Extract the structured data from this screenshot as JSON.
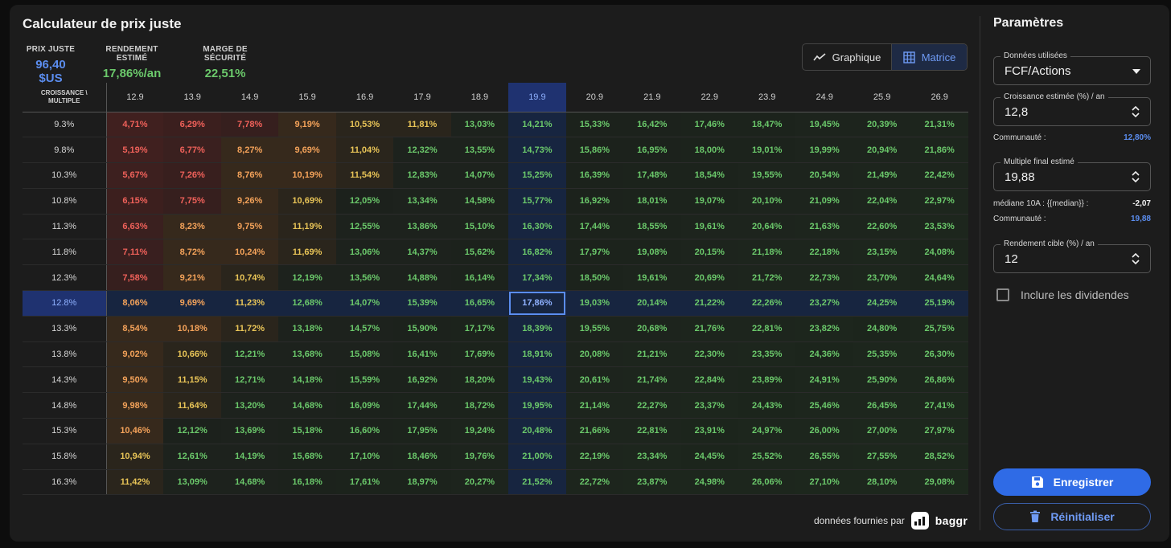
{
  "title": "Calculateur de prix juste",
  "kpis": [
    {
      "label": "PRIX JUSTE",
      "value": "96,40 $US"
    },
    {
      "label": "RENDEMENT ESTIMÉ",
      "value": "17,86%/an"
    },
    {
      "label": "MARGE DE SÉCURITÉ",
      "value": "22,51%"
    }
  ],
  "view_toggle": {
    "graph_label": "Graphique",
    "matrix_label": "Matrice",
    "active": "Matrice"
  },
  "matrix": {
    "corner_label_1": "CROISSANCE \\",
    "corner_label_2": "MULTIPLE",
    "columns": [
      "12.9",
      "13.9",
      "14.9",
      "15.9",
      "16.9",
      "17.9",
      "18.9",
      "19.9",
      "20.9",
      "21.9",
      "22.9",
      "23.9",
      "24.9",
      "25.9",
      "26.9"
    ],
    "selected_column": 7,
    "selected_row": 7,
    "colors": {
      "red": "#f0615a",
      "orange": "#f5a35a",
      "yellow": "#e8c457",
      "green": "#6bc96b",
      "selected": "#8fb1ff"
    },
    "rows": [
      {
        "label": "9.3%",
        "values": [
          "4,71%",
          "6,29%",
          "7,78%",
          "9,19%",
          "10,53%",
          "11,81%",
          "13,03%",
          "14,21%",
          "15,33%",
          "16,42%",
          "17,46%",
          "18,47%",
          "19,45%",
          "20,39%",
          "21,31%"
        ]
      },
      {
        "label": "9.8%",
        "values": [
          "5,19%",
          "6,77%",
          "8,27%",
          "9,69%",
          "11,04%",
          "12,32%",
          "13,55%",
          "14,73%",
          "15,86%",
          "16,95%",
          "18,00%",
          "19,01%",
          "19,99%",
          "20,94%",
          "21,86%"
        ]
      },
      {
        "label": "10.3%",
        "values": [
          "5,67%",
          "7,26%",
          "8,76%",
          "10,19%",
          "11,54%",
          "12,83%",
          "14,07%",
          "15,25%",
          "16,39%",
          "17,48%",
          "18,54%",
          "19,55%",
          "20,54%",
          "21,49%",
          "22,42%"
        ]
      },
      {
        "label": "10.8%",
        "values": [
          "6,15%",
          "7,75%",
          "9,26%",
          "10,69%",
          "12,05%",
          "13,34%",
          "14,58%",
          "15,77%",
          "16,92%",
          "18,01%",
          "19,07%",
          "20,10%",
          "21,09%",
          "22,04%",
          "22,97%"
        ]
      },
      {
        "label": "11.3%",
        "values": [
          "6,63%",
          "8,23%",
          "9,75%",
          "11,19%",
          "12,55%",
          "13,86%",
          "15,10%",
          "16,30%",
          "17,44%",
          "18,55%",
          "19,61%",
          "20,64%",
          "21,63%",
          "22,60%",
          "23,53%"
        ]
      },
      {
        "label": "11.8%",
        "values": [
          "7,11%",
          "8,72%",
          "10,24%",
          "11,69%",
          "13,06%",
          "14,37%",
          "15,62%",
          "16,82%",
          "17,97%",
          "19,08%",
          "20,15%",
          "21,18%",
          "22,18%",
          "23,15%",
          "24,08%"
        ]
      },
      {
        "label": "12.3%",
        "values": [
          "7,58%",
          "9,21%",
          "10,74%",
          "12,19%",
          "13,56%",
          "14,88%",
          "16,14%",
          "17,34%",
          "18,50%",
          "19,61%",
          "20,69%",
          "21,72%",
          "22,73%",
          "23,70%",
          "24,64%"
        ]
      },
      {
        "label": "12.8%",
        "values": [
          "8,06%",
          "9,69%",
          "11,23%",
          "12,68%",
          "14,07%",
          "15,39%",
          "16,65%",
          "17,86%",
          "19,03%",
          "20,14%",
          "21,22%",
          "22,26%",
          "23,27%",
          "24,25%",
          "25,19%"
        ]
      },
      {
        "label": "13.3%",
        "values": [
          "8,54%",
          "10,18%",
          "11,72%",
          "13,18%",
          "14,57%",
          "15,90%",
          "17,17%",
          "18,39%",
          "19,55%",
          "20,68%",
          "21,76%",
          "22,81%",
          "23,82%",
          "24,80%",
          "25,75%"
        ]
      },
      {
        "label": "13.8%",
        "values": [
          "9,02%",
          "10,66%",
          "12,21%",
          "13,68%",
          "15,08%",
          "16,41%",
          "17,69%",
          "18,91%",
          "20,08%",
          "21,21%",
          "22,30%",
          "23,35%",
          "24,36%",
          "25,35%",
          "26,30%"
        ]
      },
      {
        "label": "14.3%",
        "values": [
          "9,50%",
          "11,15%",
          "12,71%",
          "14,18%",
          "15,59%",
          "16,92%",
          "18,20%",
          "19,43%",
          "20,61%",
          "21,74%",
          "22,84%",
          "23,89%",
          "24,91%",
          "25,90%",
          "26,86%"
        ]
      },
      {
        "label": "14.8%",
        "values": [
          "9,98%",
          "11,64%",
          "13,20%",
          "14,68%",
          "16,09%",
          "17,44%",
          "18,72%",
          "19,95%",
          "21,14%",
          "22,27%",
          "23,37%",
          "24,43%",
          "25,46%",
          "26,45%",
          "27,41%"
        ]
      },
      {
        "label": "15.3%",
        "values": [
          "10,46%",
          "12,12%",
          "13,69%",
          "15,18%",
          "16,60%",
          "17,95%",
          "19,24%",
          "20,48%",
          "21,66%",
          "22,81%",
          "23,91%",
          "24,97%",
          "26,00%",
          "27,00%",
          "27,97%"
        ]
      },
      {
        "label": "15.8%",
        "values": [
          "10,94%",
          "12,61%",
          "14,19%",
          "15,68%",
          "17,10%",
          "18,46%",
          "19,76%",
          "21,00%",
          "22,19%",
          "23,34%",
          "24,45%",
          "25,52%",
          "26,55%",
          "27,55%",
          "28,52%"
        ]
      },
      {
        "label": "16.3%",
        "values": [
          "11,42%",
          "13,09%",
          "14,68%",
          "16,18%",
          "17,61%",
          "18,97%",
          "20,27%",
          "21,52%",
          "22,72%",
          "23,87%",
          "24,98%",
          "26,06%",
          "27,10%",
          "28,10%",
          "29,08%"
        ]
      }
    ]
  },
  "attribution": {
    "text": "données fournies par",
    "brand": "baggr"
  },
  "params": {
    "title": "Paramètres",
    "data_used": {
      "label": "Données utilisées",
      "value": "FCF/Actions"
    },
    "growth": {
      "label": "Croissance estimée (%) / an",
      "value": "12,8",
      "community_label": "Communauté :",
      "community_value": "12,80%"
    },
    "multiple": {
      "label": "Multiple final estimé",
      "value": "19,88",
      "median_label": "médiane 10A : {{median}} :",
      "median_value": "-2,07",
      "community_label": "Communauté :",
      "community_value": "19,88"
    },
    "target": {
      "label": "Rendement cible (%) / an",
      "value": "12"
    },
    "dividends_label": "Inclure les dividendes",
    "save_label": "Enregistrer",
    "reset_label": "Réinitialiser"
  }
}
